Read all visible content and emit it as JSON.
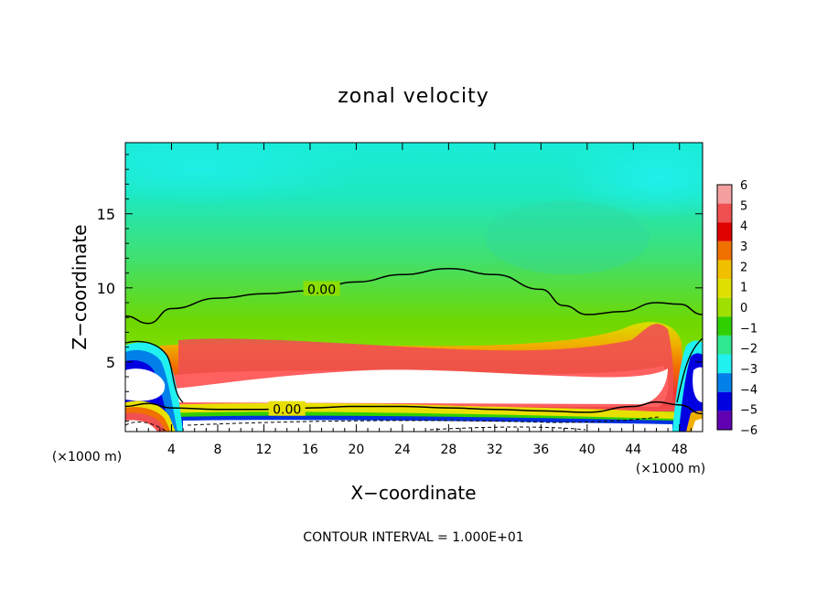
{
  "chart_data": {
    "type": "heatmap",
    "title": "zonal velocity",
    "xlabel": "X−coordinate",
    "ylabel": "Z−coordinate",
    "x_unit_left": "(×1000 m)",
    "x_unit_right": "(×1000 m)",
    "xlim": [
      0,
      50
    ],
    "ylim": [
      0.3,
      19.8
    ],
    "x_ticks": [
      {
        "value": 4,
        "label": "4"
      },
      {
        "value": 8,
        "label": "8"
      },
      {
        "value": 12,
        "label": "12"
      },
      {
        "value": 16,
        "label": "16"
      },
      {
        "value": 20,
        "label": "20"
      },
      {
        "value": 24,
        "label": "24"
      },
      {
        "value": 28,
        "label": "28"
      },
      {
        "value": 32,
        "label": "32"
      },
      {
        "value": 36,
        "label": "36"
      },
      {
        "value": 40,
        "label": "40"
      },
      {
        "value": 44,
        "label": "44"
      },
      {
        "value": 48,
        "label": "48"
      }
    ],
    "y_ticks": [
      {
        "value": 5,
        "label": "5"
      },
      {
        "value": 10,
        "label": "10"
      },
      {
        "value": 15,
        "label": "15"
      }
    ],
    "contour_labels": [
      {
        "text": "0.00",
        "x": 17.0,
        "z": 9.9
      },
      {
        "text": "0.00",
        "x": 14.0,
        "z": 1.8
      }
    ],
    "zero_contour_upper": [
      [
        0,
        8.1
      ],
      [
        2,
        7.6
      ],
      [
        4,
        8.6
      ],
      [
        8,
        9.3
      ],
      [
        12,
        9.6
      ],
      [
        16,
        9.8
      ],
      [
        20,
        10.4
      ],
      [
        24,
        10.9
      ],
      [
        28,
        11.3
      ],
      [
        32,
        10.9
      ],
      [
        36,
        9.9
      ],
      [
        38,
        8.8
      ],
      [
        40,
        8.2
      ],
      [
        43,
        8.4
      ],
      [
        46,
        9.0
      ],
      [
        48,
        8.9
      ],
      [
        50,
        8.2
      ]
    ],
    "zero_contour_lower": [
      [
        0,
        2.0
      ],
      [
        2,
        2.2
      ],
      [
        4,
        1.9
      ],
      [
        8,
        1.8
      ],
      [
        12,
        1.8
      ],
      [
        16,
        1.9
      ],
      [
        20,
        2.0
      ],
      [
        24,
        2.0
      ],
      [
        28,
        1.9
      ],
      [
        32,
        1.8
      ],
      [
        36,
        1.7
      ],
      [
        40,
        1.6
      ],
      [
        44,
        2.0
      ],
      [
        46,
        2.3
      ],
      [
        48,
        2.1
      ],
      [
        50,
        1.5
      ]
    ],
    "colorbar": {
      "labels": [
        "6",
        "5",
        "4",
        "3",
        "2",
        "1",
        "0",
        "−1",
        "−2",
        "−3",
        "−4",
        "−5",
        "−6"
      ],
      "colors": [
        "#f4a0a0",
        "#f05050",
        "#e00000",
        "#f07000",
        "#f0c000",
        "#e0e000",
        "#a0e000",
        "#30d000",
        "#30e890",
        "#20f0f0",
        "#0080e8",
        "#0000e0",
        "#6000b0"
      ]
    },
    "footer": "CONTOUR INTERVAL = 1.000E+01"
  }
}
